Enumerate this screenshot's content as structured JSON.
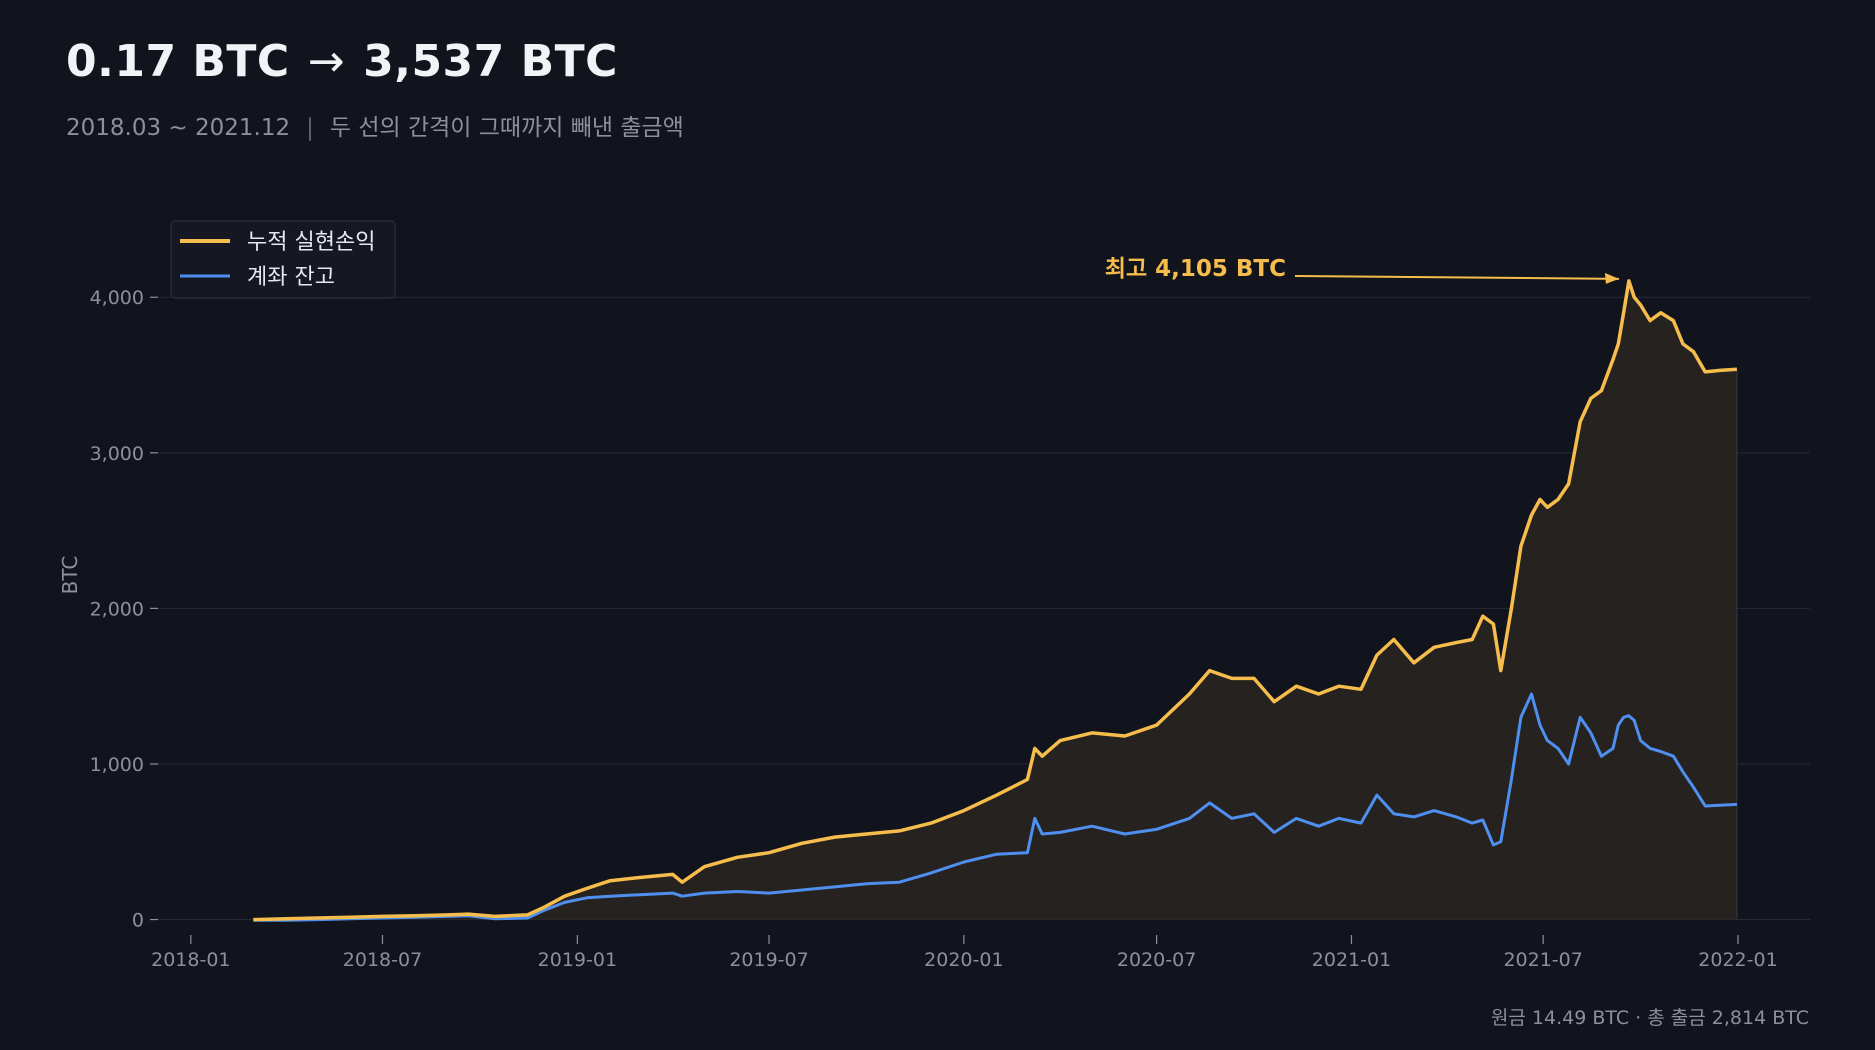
{
  "header": {
    "title_start": "0.17 BTC",
    "title_arrow": "→",
    "title_end": "3,537 BTC",
    "subtitle_period": "2018.03 ~ 2021.12",
    "subtitle_sep": "|",
    "subtitle_note": "두 선의 간격이 그때까지 빼낸 출금액"
  },
  "footer": {
    "note": "원금 14.49 BTC · 총 출금 2,814 BTC"
  },
  "colors": {
    "background": "#11141c",
    "cumulative": "#f6bd4d",
    "balance": "#4f8ff0",
    "grid": "#262a35",
    "gap_fill": "#2a2520"
  },
  "chart_data": {
    "type": "line",
    "ylabel": "BTC",
    "ylim": [
      -80,
      4400
    ],
    "xlim": [
      "2017-12-01",
      "2022-03-10"
    ],
    "yticks": [
      0,
      1000,
      2000,
      3000,
      4000
    ],
    "ytick_labels": [
      "0",
      "1,000",
      "2,000",
      "3,000",
      "4,000"
    ],
    "xticks": [
      "2018-01-01",
      "2018-07-01",
      "2019-01-01",
      "2019-07-01",
      "2020-01-01",
      "2020-07-01",
      "2021-01-01",
      "2021-07-01",
      "2022-01-01"
    ],
    "xtick_labels": [
      "2018-01",
      "2018-07",
      "2019-01",
      "2019-07",
      "2020-01",
      "2020-07",
      "2021-01",
      "2021-07",
      "2022-01"
    ],
    "legend": "upper-left",
    "grid": true,
    "annotation": {
      "text": "최고 4,105 BTC",
      "x": "2021-09-20",
      "y": 4105
    },
    "series": [
      {
        "name": "누적 실현손익",
        "x": [
          "2018-03-01",
          "2018-04-01",
          "2018-05-01",
          "2018-06-01",
          "2018-07-01",
          "2018-08-01",
          "2018-09-01",
          "2018-09-20",
          "2018-10-15",
          "2018-11-15",
          "2018-12-01",
          "2018-12-20",
          "2019-01-10",
          "2019-02-01",
          "2019-03-01",
          "2019-04-01",
          "2019-04-10",
          "2019-05-01",
          "2019-06-01",
          "2019-07-01",
          "2019-08-01",
          "2019-09-01",
          "2019-10-01",
          "2019-11-01",
          "2019-12-01",
          "2020-01-01",
          "2020-02-01",
          "2020-03-01",
          "2020-03-08",
          "2020-03-15",
          "2020-04-01",
          "2020-05-01",
          "2020-06-01",
          "2020-07-01",
          "2020-08-01",
          "2020-08-20",
          "2020-09-10",
          "2020-10-01",
          "2020-10-20",
          "2020-11-10",
          "2020-12-01",
          "2020-12-20",
          "2021-01-10",
          "2021-01-25",
          "2021-02-10",
          "2021-03-01",
          "2021-03-20",
          "2021-04-10",
          "2021-04-25",
          "2021-05-05",
          "2021-05-15",
          "2021-05-22",
          "2021-06-01",
          "2021-06-10",
          "2021-06-20",
          "2021-06-28",
          "2021-07-05",
          "2021-07-15",
          "2021-07-25",
          "2021-08-05",
          "2021-08-15",
          "2021-08-25",
          "2021-09-05",
          "2021-09-10",
          "2021-09-15",
          "2021-09-20",
          "2021-09-25",
          "2021-10-01",
          "2021-10-10",
          "2021-10-20",
          "2021-11-01",
          "2021-11-10",
          "2021-11-20",
          "2021-12-01",
          "2021-12-15",
          "2021-12-31"
        ],
        "values": [
          0,
          5,
          10,
          15,
          20,
          25,
          30,
          35,
          20,
          30,
          80,
          150,
          200,
          250,
          270,
          290,
          240,
          340,
          400,
          430,
          490,
          530,
          550,
          570,
          620,
          700,
          800,
          900,
          1100,
          1050,
          1150,
          1200,
          1180,
          1250,
          1450,
          1600,
          1550,
          1550,
          1400,
          1500,
          1450,
          1500,
          1480,
          1700,
          1800,
          1650,
          1750,
          1780,
          1800,
          1950,
          1900,
          1600,
          2000,
          2400,
          2600,
          2700,
          2650,
          2700,
          2800,
          3200,
          3350,
          3400,
          3600,
          3700,
          3900,
          4105,
          4000,
          3950,
          3850,
          3900,
          3850,
          3700,
          3650,
          3520,
          3530,
          3537
        ]
      },
      {
        "name": "계좌 잔고",
        "x": [
          "2018-03-01",
          "2018-04-01",
          "2018-05-01",
          "2018-06-01",
          "2018-07-01",
          "2018-08-01",
          "2018-09-01",
          "2018-09-20",
          "2018-10-15",
          "2018-11-15",
          "2018-12-01",
          "2018-12-20",
          "2019-01-10",
          "2019-02-01",
          "2019-03-01",
          "2019-04-01",
          "2019-04-10",
          "2019-05-01",
          "2019-06-01",
          "2019-07-01",
          "2019-08-01",
          "2019-09-01",
          "2019-10-01",
          "2019-11-01",
          "2019-12-01",
          "2020-01-01",
          "2020-02-01",
          "2020-03-01",
          "2020-03-08",
          "2020-03-15",
          "2020-04-01",
          "2020-05-01",
          "2020-06-01",
          "2020-07-01",
          "2020-08-01",
          "2020-08-20",
          "2020-09-10",
          "2020-10-01",
          "2020-10-20",
          "2020-11-10",
          "2020-12-01",
          "2020-12-20",
          "2021-01-10",
          "2021-01-25",
          "2021-02-10",
          "2021-03-01",
          "2021-03-20",
          "2021-04-10",
          "2021-04-25",
          "2021-05-05",
          "2021-05-15",
          "2021-05-22",
          "2021-06-01",
          "2021-06-10",
          "2021-06-20",
          "2021-06-28",
          "2021-07-05",
          "2021-07-15",
          "2021-07-25",
          "2021-08-05",
          "2021-08-15",
          "2021-08-25",
          "2021-09-05",
          "2021-09-10",
          "2021-09-15",
          "2021-09-20",
          "2021-09-25",
          "2021-10-01",
          "2021-10-10",
          "2021-10-20",
          "2021-11-01",
          "2021-11-10",
          "2021-11-20",
          "2021-12-01",
          "2021-12-15",
          "2021-12-31"
        ],
        "values": [
          -5,
          -5,
          0,
          5,
          10,
          15,
          20,
          25,
          5,
          10,
          60,
          110,
          140,
          150,
          160,
          170,
          150,
          170,
          180,
          170,
          190,
          210,
          230,
          240,
          300,
          370,
          420,
          430,
          650,
          550,
          560,
          600,
          550,
          580,
          650,
          750,
          650,
          680,
          560,
          650,
          600,
          650,
          620,
          800,
          680,
          660,
          700,
          660,
          620,
          640,
          480,
          500,
          900,
          1300,
          1450,
          1250,
          1150,
          1100,
          1000,
          1300,
          1200,
          1050,
          1100,
          1250,
          1300,
          1310,
          1280,
          1150,
          1100,
          1080,
          1050,
          950,
          850,
          730,
          735,
          740
        ]
      }
    ]
  }
}
